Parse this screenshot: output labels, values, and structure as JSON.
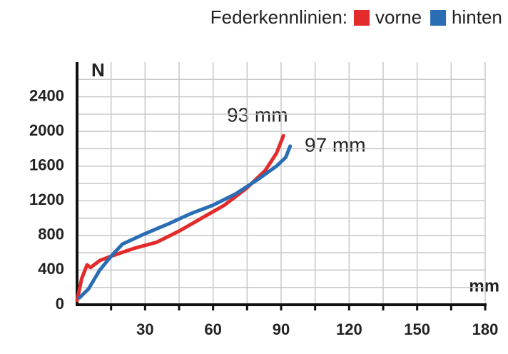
{
  "chart_data": {
    "type": "line",
    "legend_title": "Federkennlinien:",
    "y_label": "N",
    "x_label": "mm",
    "annotations": [
      "93 mm",
      "97 mm"
    ],
    "xlim": [
      0,
      180
    ],
    "ylim": [
      0,
      2800
    ],
    "xticks": [
      30,
      60,
      90,
      120,
      150,
      180
    ],
    "x_minor_ticks": [
      15,
      45,
      75,
      105,
      135,
      165
    ],
    "yticks": [
      0,
      400,
      800,
      1200,
      1600,
      2000,
      2400
    ],
    "y_minor_ticks": [
      200,
      600,
      1000,
      1400,
      1800,
      2200,
      2600
    ],
    "grid": true,
    "series": [
      {
        "name": "vorne",
        "color": "#e32b2b",
        "x": [
          0,
          2,
          4.4,
          6,
          8,
          10,
          15,
          25,
          35,
          45,
          55,
          65,
          75,
          83,
          88,
          91
        ],
        "values": [
          50,
          300,
          460,
          430,
          470,
          510,
          560,
          650,
          720,
          850,
          1000,
          1150,
          1350,
          1550,
          1750,
          1950
        ]
      },
      {
        "name": "hinten",
        "color": "#2a6db5",
        "x": [
          1,
          5,
          10,
          15,
          20,
          30,
          40,
          50,
          60,
          70,
          80,
          88,
          92,
          94
        ],
        "values": [
          80,
          180,
          400,
          560,
          700,
          820,
          930,
          1050,
          1150,
          1280,
          1450,
          1600,
          1700,
          1830
        ]
      }
    ]
  }
}
